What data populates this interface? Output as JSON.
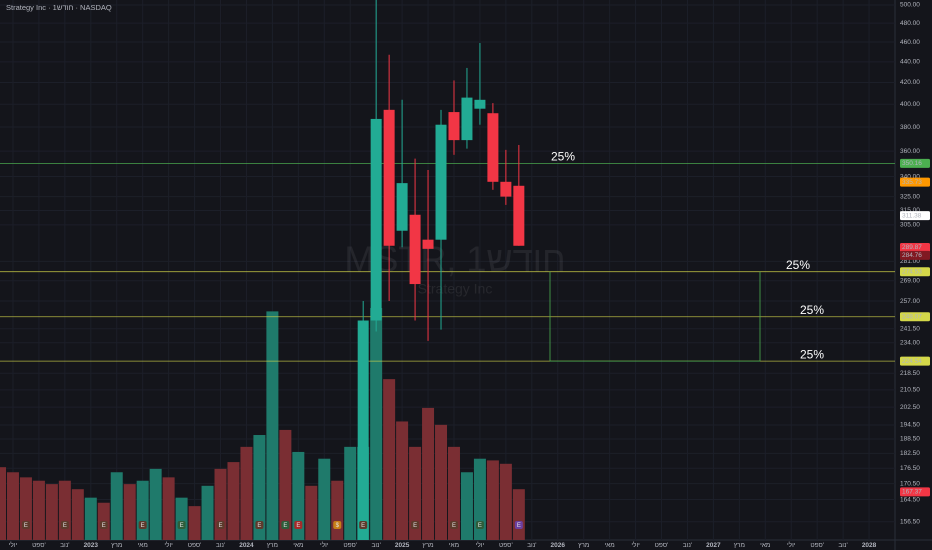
{
  "header": {
    "title": "Strategy Inc · 1חודש · NASDAQ"
  },
  "watermark": {
    "symbol": "MSTR, 1חודש",
    "name": "Strategy Inc"
  },
  "chart_data": {
    "type": "candlestick",
    "log_scale": true,
    "grid": true,
    "up_color": "#22ab94",
    "down_color": "#f23645",
    "x": [
      "2024-10",
      "2024-11",
      "2024-12",
      "2025-01",
      "2025-02",
      "2025-03",
      "2025-04",
      "2025-05",
      "2025-06",
      "2025-07",
      "2025-08",
      "2025-09",
      "2025-10"
    ],
    "open": [
      149,
      246,
      395,
      301,
      312,
      295,
      295,
      393,
      369,
      396,
      392,
      336,
      333
    ],
    "high": [
      257,
      543,
      447,
      404,
      354,
      345,
      395,
      422,
      434,
      459,
      401,
      361,
      365
    ],
    "low": [
      149,
      240,
      257,
      290,
      246,
      235,
      241,
      357,
      362,
      382,
      330,
      319,
      291
    ],
    "close": [
      246,
      387,
      291,
      335,
      267,
      289,
      382,
      369,
      406,
      404,
      336,
      325,
      291
    ],
    "ylim": [
      150.2,
      505.6
    ],
    "yticks": [
      {
        "value": 500,
        "label": "500.00"
      },
      {
        "value": 480,
        "label": "480.00"
      },
      {
        "value": 460,
        "label": "460.00"
      },
      {
        "value": 440,
        "label": "440.00"
      },
      {
        "value": 420,
        "label": "420.00"
      },
      {
        "value": 400,
        "label": "400.00"
      },
      {
        "value": 380,
        "label": "380.00"
      },
      {
        "value": 360,
        "label": "360.00"
      },
      {
        "value": 340,
        "label": "340.00"
      },
      {
        "value": 325,
        "label": "325.00"
      },
      {
        "value": 315,
        "label": "315.00"
      },
      {
        "value": 305,
        "label": "305.00"
      },
      {
        "value": 281,
        "label": "281.00"
      },
      {
        "value": 269,
        "label": "269.00"
      },
      {
        "value": 257,
        "label": "257.00"
      },
      {
        "value": 241.5,
        "label": "241.50"
      },
      {
        "value": 234,
        "label": "234.00"
      },
      {
        "value": 218.5,
        "label": "218.50"
      },
      {
        "value": 210.5,
        "label": "210.50"
      },
      {
        "value": 202.5,
        "label": "202.50"
      },
      {
        "value": 194.5,
        "label": "194.50"
      },
      {
        "value": 188.5,
        "label": "188.50"
      },
      {
        "value": 182.5,
        "label": "182.50"
      },
      {
        "value": 176.5,
        "label": "176.50"
      },
      {
        "value": 170.5,
        "label": "170.50"
      },
      {
        "value": 164.5,
        "label": "164.50"
      },
      {
        "value": 156.5,
        "label": "156.50"
      }
    ],
    "xlim": [
      "2022-06",
      "2028-03"
    ],
    "xticks": [
      {
        "value": "2022-07",
        "label": "יולי"
      },
      {
        "value": "2022-09",
        "label": "ספט'"
      },
      {
        "value": "2022-11",
        "label": "נוב'"
      },
      {
        "value": "2023-01",
        "label": "2023"
      },
      {
        "value": "2023-03",
        "label": "מרץ"
      },
      {
        "value": "2023-05",
        "label": "מאי"
      },
      {
        "value": "2023-07",
        "label": "יולי"
      },
      {
        "value": "2023-09",
        "label": "ספט'"
      },
      {
        "value": "2023-11",
        "label": "נוב'"
      },
      {
        "value": "2024-01",
        "label": "2024"
      },
      {
        "value": "2024-03",
        "label": "מרץ"
      },
      {
        "value": "2024-05",
        "label": "מאי"
      },
      {
        "value": "2024-07",
        "label": "יולי"
      },
      {
        "value": "2024-09",
        "label": "ספט'"
      },
      {
        "value": "2024-11",
        "label": "נוב'"
      },
      {
        "value": "2025-01",
        "label": "2025"
      },
      {
        "value": "2025-03",
        "label": "מרץ"
      },
      {
        "value": "2025-05",
        "label": "מאי"
      },
      {
        "value": "2025-07",
        "label": "יולי"
      },
      {
        "value": "2025-09",
        "label": "ספט'"
      },
      {
        "value": "2025-11",
        "label": "נוב'"
      },
      {
        "value": "2026-01",
        "label": "2026"
      },
      {
        "value": "2026-03",
        "label": "מרץ"
      },
      {
        "value": "2026-05",
        "label": "מאי"
      },
      {
        "value": "2026-07",
        "label": "יולי"
      },
      {
        "value": "2026-09",
        "label": "ספט'"
      },
      {
        "value": "2026-11",
        "label": "נוב'"
      },
      {
        "value": "2027-01",
        "label": "2027"
      },
      {
        "value": "2027-03",
        "label": "מרץ"
      },
      {
        "value": "2027-05",
        "label": "מאי"
      },
      {
        "value": "2027-07",
        "label": "יולי"
      },
      {
        "value": "2027-09",
        "label": "ספט'"
      },
      {
        "value": "2027-11",
        "label": "נוב'"
      },
      {
        "value": "2028-01",
        "label": "2028"
      }
    ],
    "volume": {
      "x_start": "2022-06",
      "values": [
        43,
        40,
        37,
        35,
        33,
        35,
        30,
        25,
        22,
        40,
        33,
        35,
        42,
        37,
        25,
        20,
        32,
        42,
        46,
        55,
        62,
        135,
        65,
        52,
        32,
        48,
        35,
        55,
        55,
        137,
        95,
        70,
        55,
        78,
        68,
        55,
        40,
        48,
        47,
        45,
        30
      ],
      "colors": [
        "#7a2e33",
        "#7a2e33",
        "#7a2e33",
        "#7a2e33",
        "#7a2e33",
        "#7a2e33",
        "#7a2e33",
        "#1f7a6b",
        "#7a2e33",
        "#1f7a6b",
        "#7a2e33",
        "#1f7a6b",
        "#1f7a6b",
        "#7a2e33",
        "#1f7a6b",
        "#7a2e33",
        "#1f7a6b",
        "#7a2e33",
        "#7a2e33",
        "#7a2e33",
        "#1f7a6b",
        "#1f7a6b",
        "#7a2e33",
        "#1f7a6b",
        "#7a2e33",
        "#1f7a6b",
        "#7a2e33",
        "#1f7a6b",
        "#1f7a6b",
        "#1f7a6b",
        "#7a2e33",
        "#7a2e33",
        "#7a2e33",
        "#7a2e33",
        "#7a2e33",
        "#7a2e33",
        "#1f7a6b",
        "#1f7a6b",
        "#7a2e33",
        "#7a2e33",
        "#7a2e33"
      ]
    },
    "levels": [
      {
        "value": 350.16,
        "label": "350.16",
        "note": "25%",
        "color": "#4caf50"
      },
      {
        "value": 274.53,
        "label": "274.53",
        "note": "25%",
        "color": "#d4d84a"
      },
      {
        "value": 248.07,
        "label": "248.07",
        "note": "25%",
        "color": "#d4d84a"
      },
      {
        "value": 224.54,
        "label": "224.54",
        "note": "25%",
        "color": "#d4d84a"
      }
    ],
    "price_labels": [
      {
        "value": 335.73,
        "label": "335.73",
        "color": "#ff9800"
      },
      {
        "value": 311.38,
        "label": "311.38",
        "color": "#ffffff"
      },
      {
        "value": 289.87,
        "label": "289.87",
        "color": "#f23645"
      },
      {
        "value": 284.76,
        "label": "284.76",
        "color": "#801922"
      },
      {
        "value": 167.37,
        "label": "167.37",
        "color": "#f23645"
      }
    ],
    "events": [
      {
        "x": "2022-08",
        "label": "E",
        "color": "#5d3a2c"
      },
      {
        "x": "2022-11",
        "label": "E",
        "color": "#5d3a2c"
      },
      {
        "x": "2023-02",
        "label": "E",
        "color": "#5d3a2c"
      },
      {
        "x": "2023-05",
        "label": "E",
        "color": "#5d3a2c"
      },
      {
        "x": "2023-08",
        "label": "E",
        "color": "#2e5d3a"
      },
      {
        "x": "2023-11",
        "label": "E",
        "color": "#5d3a2c"
      },
      {
        "x": "2024-02",
        "label": "E",
        "color": "#5d3a2c"
      },
      {
        "x": "2024-04",
        "label": "E",
        "color": "#2e5d3a"
      },
      {
        "x": "2024-05",
        "label": "E",
        "color": "#a52a2a"
      },
      {
        "x": "2024-08",
        "label": "$",
        "color": "#c77d16"
      },
      {
        "x": "2024-10",
        "label": "E",
        "color": "#5d3a2c"
      },
      {
        "x": "2025-02",
        "label": "E",
        "color": "#5d3a2c"
      },
      {
        "x": "2025-05",
        "label": "E",
        "color": "#5d3a2c"
      },
      {
        "x": "2025-07",
        "label": "E",
        "color": "#2e5d3a"
      },
      {
        "x": "2025-10",
        "label": "E",
        "color": "#6b3fa0"
      }
    ]
  }
}
